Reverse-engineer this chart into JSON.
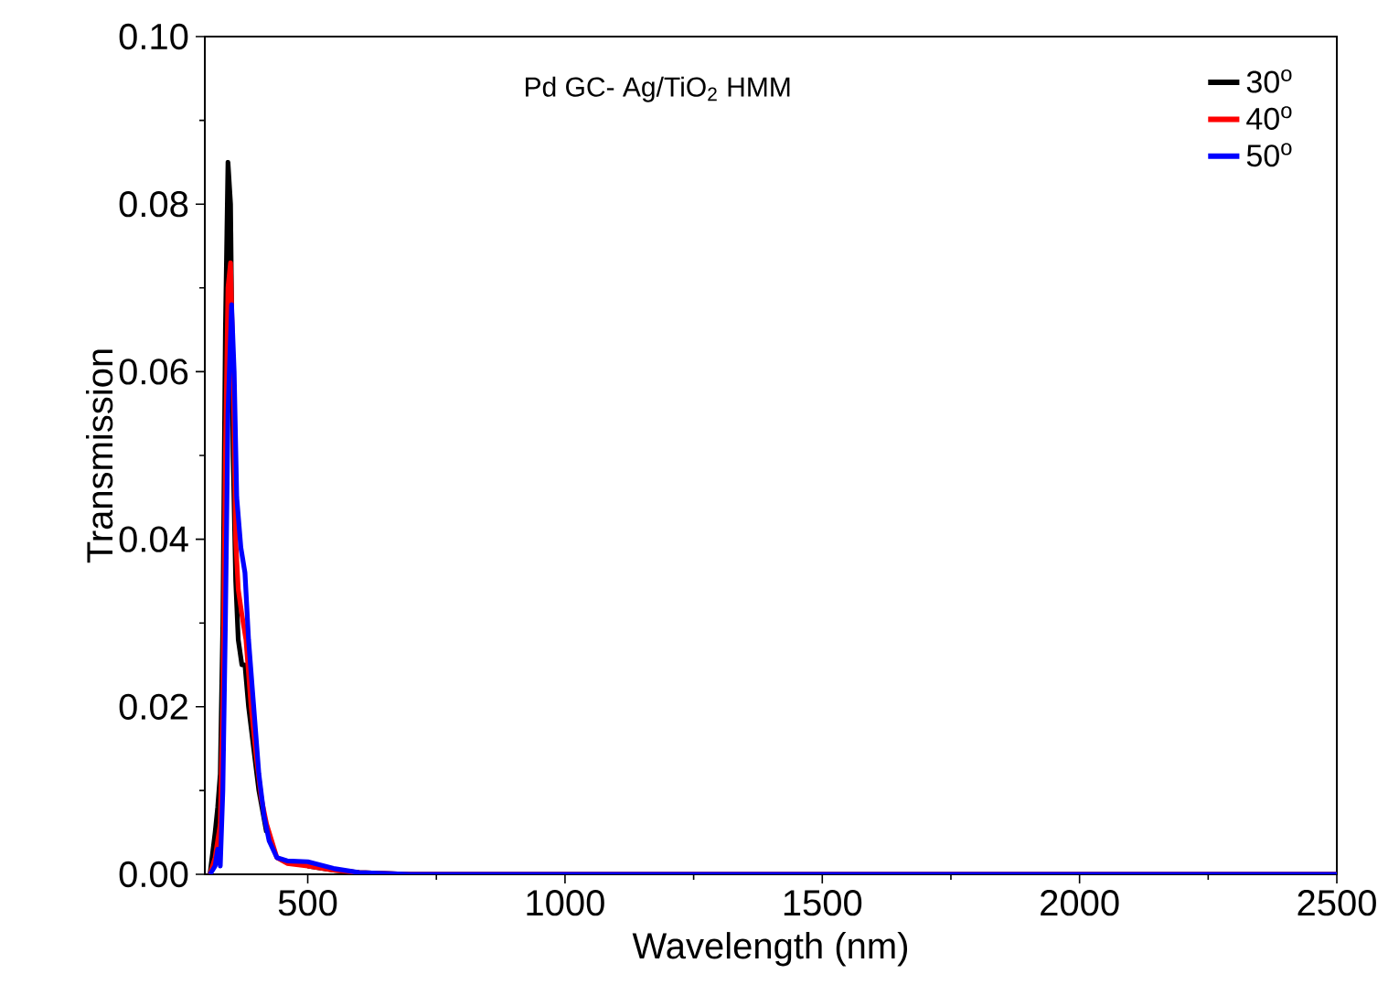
{
  "chart_data": {
    "type": "line",
    "title": "Pd GC- Ag/TiO$_{2}$ HMM",
    "xlabel": "Wavelength (nm)",
    "ylabel": "Transmission",
    "xlim": [
      300,
      2500
    ],
    "ylim": [
      0,
      0.1
    ],
    "xticks": [
      500,
      1000,
      1500,
      2000,
      2500
    ],
    "yticks": [
      {
        "value": 0,
        "label": "0.00"
      },
      {
        "value": 0.02,
        "label": "0.02"
      },
      {
        "value": 0.04,
        "label": "0.04"
      },
      {
        "value": 0.06,
        "label": "0.06"
      },
      {
        "value": 0.08,
        "label": "0.08"
      },
      {
        "value": 0.1,
        "label": "0.10"
      }
    ],
    "legend": "top right",
    "grid": false,
    "marker": "none",
    "line_style": "solid",
    "series": [
      {
        "name": "30$^{o}$",
        "color": "#000000",
        "x": [
          310,
          320,
          325,
          330,
          335,
          340,
          345,
          350,
          355,
          360,
          365,
          372,
          378,
          385,
          395,
          405,
          420,
          440,
          460,
          500,
          550,
          600,
          700,
          2500
        ],
        "values": [
          0,
          0.005,
          0.008,
          0.012,
          0.03,
          0.065,
          0.085,
          0.08,
          0.05,
          0.035,
          0.028,
          0.025,
          0.025,
          0.02,
          0.015,
          0.01,
          0.005,
          null,
          null,
          0.001,
          0.0005,
          0.0002,
          0,
          0
        ]
      },
      {
        "name": "40$^{o}$",
        "color": "#ff0000",
        "x": [
          310,
          320,
          325,
          330,
          335,
          340,
          345,
          350,
          355,
          360,
          365,
          372,
          380,
          390,
          400,
          410,
          420,
          440,
          460,
          500,
          550,
          600,
          700,
          2500
        ],
        "values": [
          0,
          0.002,
          0.004,
          0.006,
          0.02,
          0.05,
          0.07,
          0.073,
          0.06,
          0.04,
          0.034,
          0.031,
          0.028,
          0.02,
          0.014,
          0.009,
          0.006,
          0.002,
          0.0013,
          0.001,
          0.0005,
          0.0002,
          0,
          0
        ]
      },
      {
        "name": "50$^{o}$",
        "color": "#0000ff",
        "x": [
          310,
          320,
          325,
          330,
          335,
          340,
          345,
          352,
          357,
          362,
          370,
          378,
          385,
          395,
          405,
          415,
          425,
          440,
          460,
          500,
          550,
          600,
          700,
          2500
        ],
        "values": [
          0,
          0.001,
          0.003,
          0.001,
          0.01,
          0.03,
          0.055,
          0.068,
          0.06,
          0.045,
          0.039,
          0.036,
          0.028,
          0.02,
          0.012,
          0.007,
          0.004,
          0.002,
          0.0016,
          0.0015,
          0.0007,
          0.0002,
          0,
          0
        ]
      }
    ]
  }
}
